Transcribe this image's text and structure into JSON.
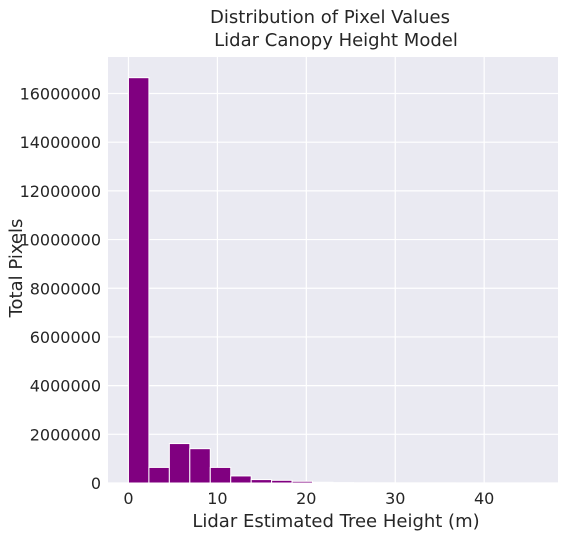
{
  "chart_data": {
    "type": "bar",
    "title_lines": [
      "Distribution of Pixel Values",
      "Lidar Canopy Height Model"
    ],
    "xlabel": "Lidar Estimated Tree Height (m)",
    "ylabel": "Total Pixels",
    "xlim": [
      -2.3,
      48.3
    ],
    "ylim": [
      0,
      17500000
    ],
    "xticks": [
      0,
      10,
      20,
      30,
      40
    ],
    "yticks": [
      0,
      2000000,
      4000000,
      6000000,
      8000000,
      10000000,
      12000000,
      14000000,
      16000000
    ],
    "grid": true,
    "bin_width": 2.3,
    "bins": [
      {
        "x0": 0.0,
        "count": 16650000
      },
      {
        "x0": 2.3,
        "count": 640000
      },
      {
        "x0": 4.6,
        "count": 1620000
      },
      {
        "x0": 6.9,
        "count": 1410000
      },
      {
        "x0": 9.2,
        "count": 640000
      },
      {
        "x0": 11.5,
        "count": 290000
      },
      {
        "x0": 13.8,
        "count": 140000
      },
      {
        "x0": 16.1,
        "count": 110000
      },
      {
        "x0": 18.4,
        "count": 70000
      },
      {
        "x0": 20.7,
        "count": 30000
      },
      {
        "x0": 23.0,
        "count": 15000
      },
      {
        "x0": 25.3,
        "count": 8000
      },
      {
        "x0": 27.6,
        "count": 5000
      },
      {
        "x0": 29.9,
        "count": 3000
      },
      {
        "x0": 32.2,
        "count": 2000
      },
      {
        "x0": 34.5,
        "count": 1500
      },
      {
        "x0": 36.8,
        "count": 1000
      },
      {
        "x0": 39.1,
        "count": 800
      },
      {
        "x0": 41.4,
        "count": 500
      },
      {
        "x0": 43.7,
        "count": 300
      }
    ],
    "colors": {
      "bar": "#800080",
      "plot_bg": "#EAEAF2",
      "grid": "#ffffff",
      "text": "#262626"
    }
  }
}
